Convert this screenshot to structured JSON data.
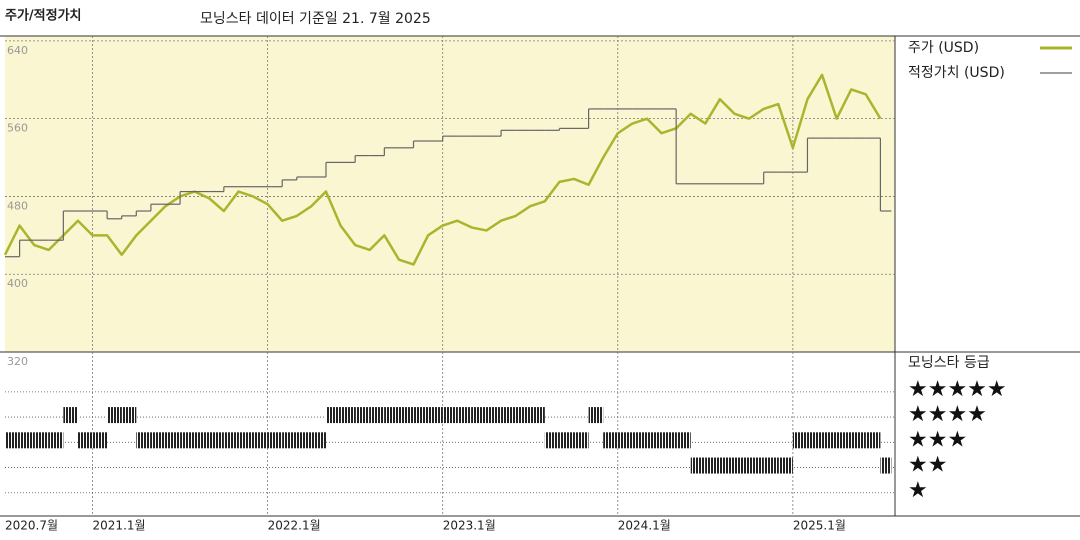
{
  "chart_data": [
    {
      "type": "line",
      "title": "주가/적정가치",
      "subtitle": "모닝스타 데이터 기준일 21. 7월 2025",
      "x": [
        "2020-07",
        "2020-08",
        "2020-09",
        "2020-10",
        "2020-11",
        "2020-12",
        "2021-01",
        "2021-02",
        "2021-03",
        "2021-04",
        "2021-05",
        "2021-06",
        "2021-07",
        "2021-08",
        "2021-09",
        "2021-10",
        "2021-11",
        "2021-12",
        "2022-01",
        "2022-02",
        "2022-03",
        "2022-04",
        "2022-05",
        "2022-06",
        "2022-07",
        "2022-08",
        "2022-09",
        "2022-10",
        "2022-11",
        "2022-12",
        "2023-01",
        "2023-02",
        "2023-03",
        "2023-04",
        "2023-05",
        "2023-06",
        "2023-07",
        "2023-08",
        "2023-09",
        "2023-10",
        "2023-11",
        "2023-12",
        "2024-01",
        "2024-02",
        "2024-03",
        "2024-04",
        "2024-05",
        "2024-06",
        "2024-07",
        "2024-08",
        "2024-09",
        "2024-10",
        "2024-11",
        "2024-12",
        "2025-01",
        "2025-02",
        "2025-03",
        "2025-04",
        "2025-05",
        "2025-06",
        "2025-07"
      ],
      "xlim": [
        "2020-07",
        "2025-08"
      ],
      "xticks": [
        {
          "value": "2020-07",
          "label": "2020.7월"
        },
        {
          "value": "2021-01",
          "label": "2021.1월"
        },
        {
          "value": "2022-01",
          "label": "2022.1월"
        },
        {
          "value": "2023-01",
          "label": "2023.1월"
        },
        {
          "value": "2024-01",
          "label": "2024.1월"
        },
        {
          "value": "2025-01",
          "label": "2025.1월"
        }
      ],
      "ylim": [
        320,
        645
      ],
      "yticks": [
        640,
        560,
        480,
        400,
        320
      ],
      "grid": true,
      "series": [
        {
          "name": "주가 (USD)",
          "color": "#a9b52c",
          "values": [
            420,
            450,
            430,
            425,
            440,
            455,
            440,
            440,
            420,
            440,
            455,
            470,
            480,
            485,
            478,
            465,
            485,
            480,
            472,
            455,
            460,
            470,
            485,
            450,
            430,
            425,
            440,
            415,
            410,
            440,
            450,
            455,
            448,
            445,
            455,
            460,
            470,
            475,
            495,
            498,
            492,
            520,
            545,
            555,
            560,
            545,
            550,
            565,
            555,
            580,
            565,
            560,
            570,
            575,
            530,
            580,
            605,
            560,
            590,
            585,
            560
          ]
        },
        {
          "name": "적정가치 (USD)",
          "color": "#666666",
          "values": [
            418,
            435,
            435,
            435,
            465,
            465,
            465,
            457,
            460,
            465,
            472,
            472,
            485,
            485,
            485,
            490,
            490,
            490,
            490,
            497,
            500,
            500,
            515,
            515,
            522,
            522,
            530,
            530,
            537,
            537,
            542,
            542,
            542,
            542,
            548,
            548,
            548,
            548,
            550,
            550,
            570,
            570,
            570,
            570,
            570,
            570,
            493,
            493,
            493,
            493,
            493,
            493,
            505,
            505,
            505,
            540,
            540,
            540,
            540,
            540,
            465
          ]
        }
      ]
    },
    {
      "type": "rating",
      "title": "모닝스타 등급",
      "ylim": [
        0,
        6.5
      ],
      "yticks": [
        {
          "value": 5,
          "label": "★★★★★"
        },
        {
          "value": 4,
          "label": "★★★★"
        },
        {
          "value": 3,
          "label": "★★★"
        },
        {
          "value": 2,
          "label": "★★"
        },
        {
          "value": 1,
          "label": "★"
        }
      ],
      "color": "#222222",
      "values": [
        3,
        3,
        3,
        3,
        4,
        3,
        3,
        4,
        4,
        3,
        3,
        3,
        3,
        3,
        3,
        3,
        3,
        3,
        3,
        3,
        3,
        3,
        4,
        4,
        4,
        4,
        4,
        4,
        4,
        4,
        4,
        4,
        4,
        4,
        4,
        4,
        4,
        3,
        3,
        3,
        4,
        3,
        3,
        3,
        3,
        3,
        3,
        2,
        2,
        2,
        2,
        2,
        2,
        2,
        3,
        3,
        3,
        3,
        3,
        3,
        2
      ]
    }
  ]
}
